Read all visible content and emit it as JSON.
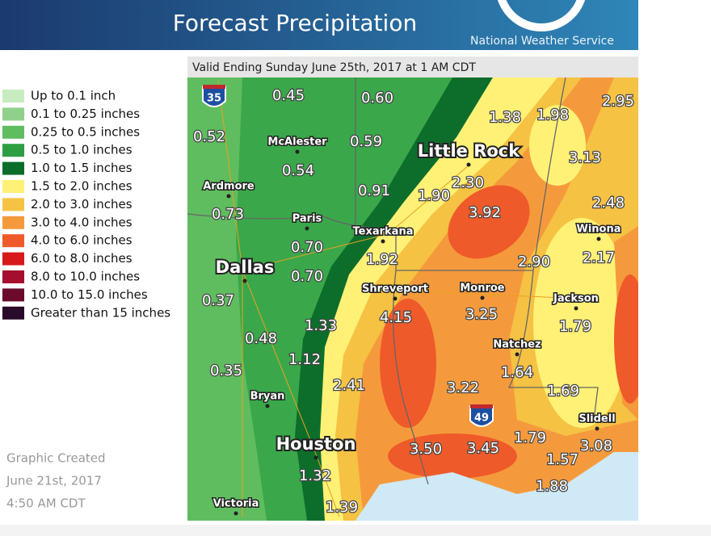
{
  "header": {
    "title": "Forecast Precipitation",
    "agency": "National Weather Service"
  },
  "valid": "Valid Ending Sunday June 25th, 2017 at 1 AM CDT",
  "legend": [
    "Up to 0.1 inch",
    "0.1 to 0.25 inches",
    "0.25 to 0.5 inches",
    "0.5 to 1.0 inches",
    "1.0 to 1.5 inches",
    "1.5 to 2.0 inches",
    "2.0 to 3.0 inches",
    "3.0 to 4.0 inches",
    "4.0 to 6.0 inches",
    "6.0 to 8.0 inches",
    "8.0 to 10.0 inches",
    "10.0 to 15.0 inches",
    "Greater than 15 inches"
  ],
  "cities": [
    "McAlester",
    "Little Rock",
    "Ardmore",
    "Paris",
    "Texarkana",
    "Winona",
    "Dallas",
    "Shreveport",
    "Monroe",
    "Jackson",
    "Natchez",
    "Bryan",
    "Slidell",
    "Houston",
    "Victoria"
  ],
  "interstates": [
    "35",
    "49"
  ],
  "amounts": [
    "0.45",
    "0.60",
    "1.38",
    "1.98",
    "2.95",
    "0.52",
    "0.59",
    "0.54",
    "3.13",
    "0.91",
    "1.90",
    "2.30",
    "3.92",
    "2.48",
    "0.73",
    "0.70",
    "2.17",
    "1.92",
    "2.90",
    "0.70",
    "0.37",
    "4.15",
    "3.25",
    "1.33",
    "1.79",
    "0.48",
    "1.12",
    "1.64",
    "0.35",
    "2.41",
    "3.22",
    "1.69",
    "1.79",
    "3.50",
    "3.45",
    "3.08",
    "1.57",
    "1.32",
    "1.88",
    "1.39"
  ],
  "created": [
    "Graphic Created",
    "June 21st, 2017",
    "4:50 AM CDT"
  ]
}
